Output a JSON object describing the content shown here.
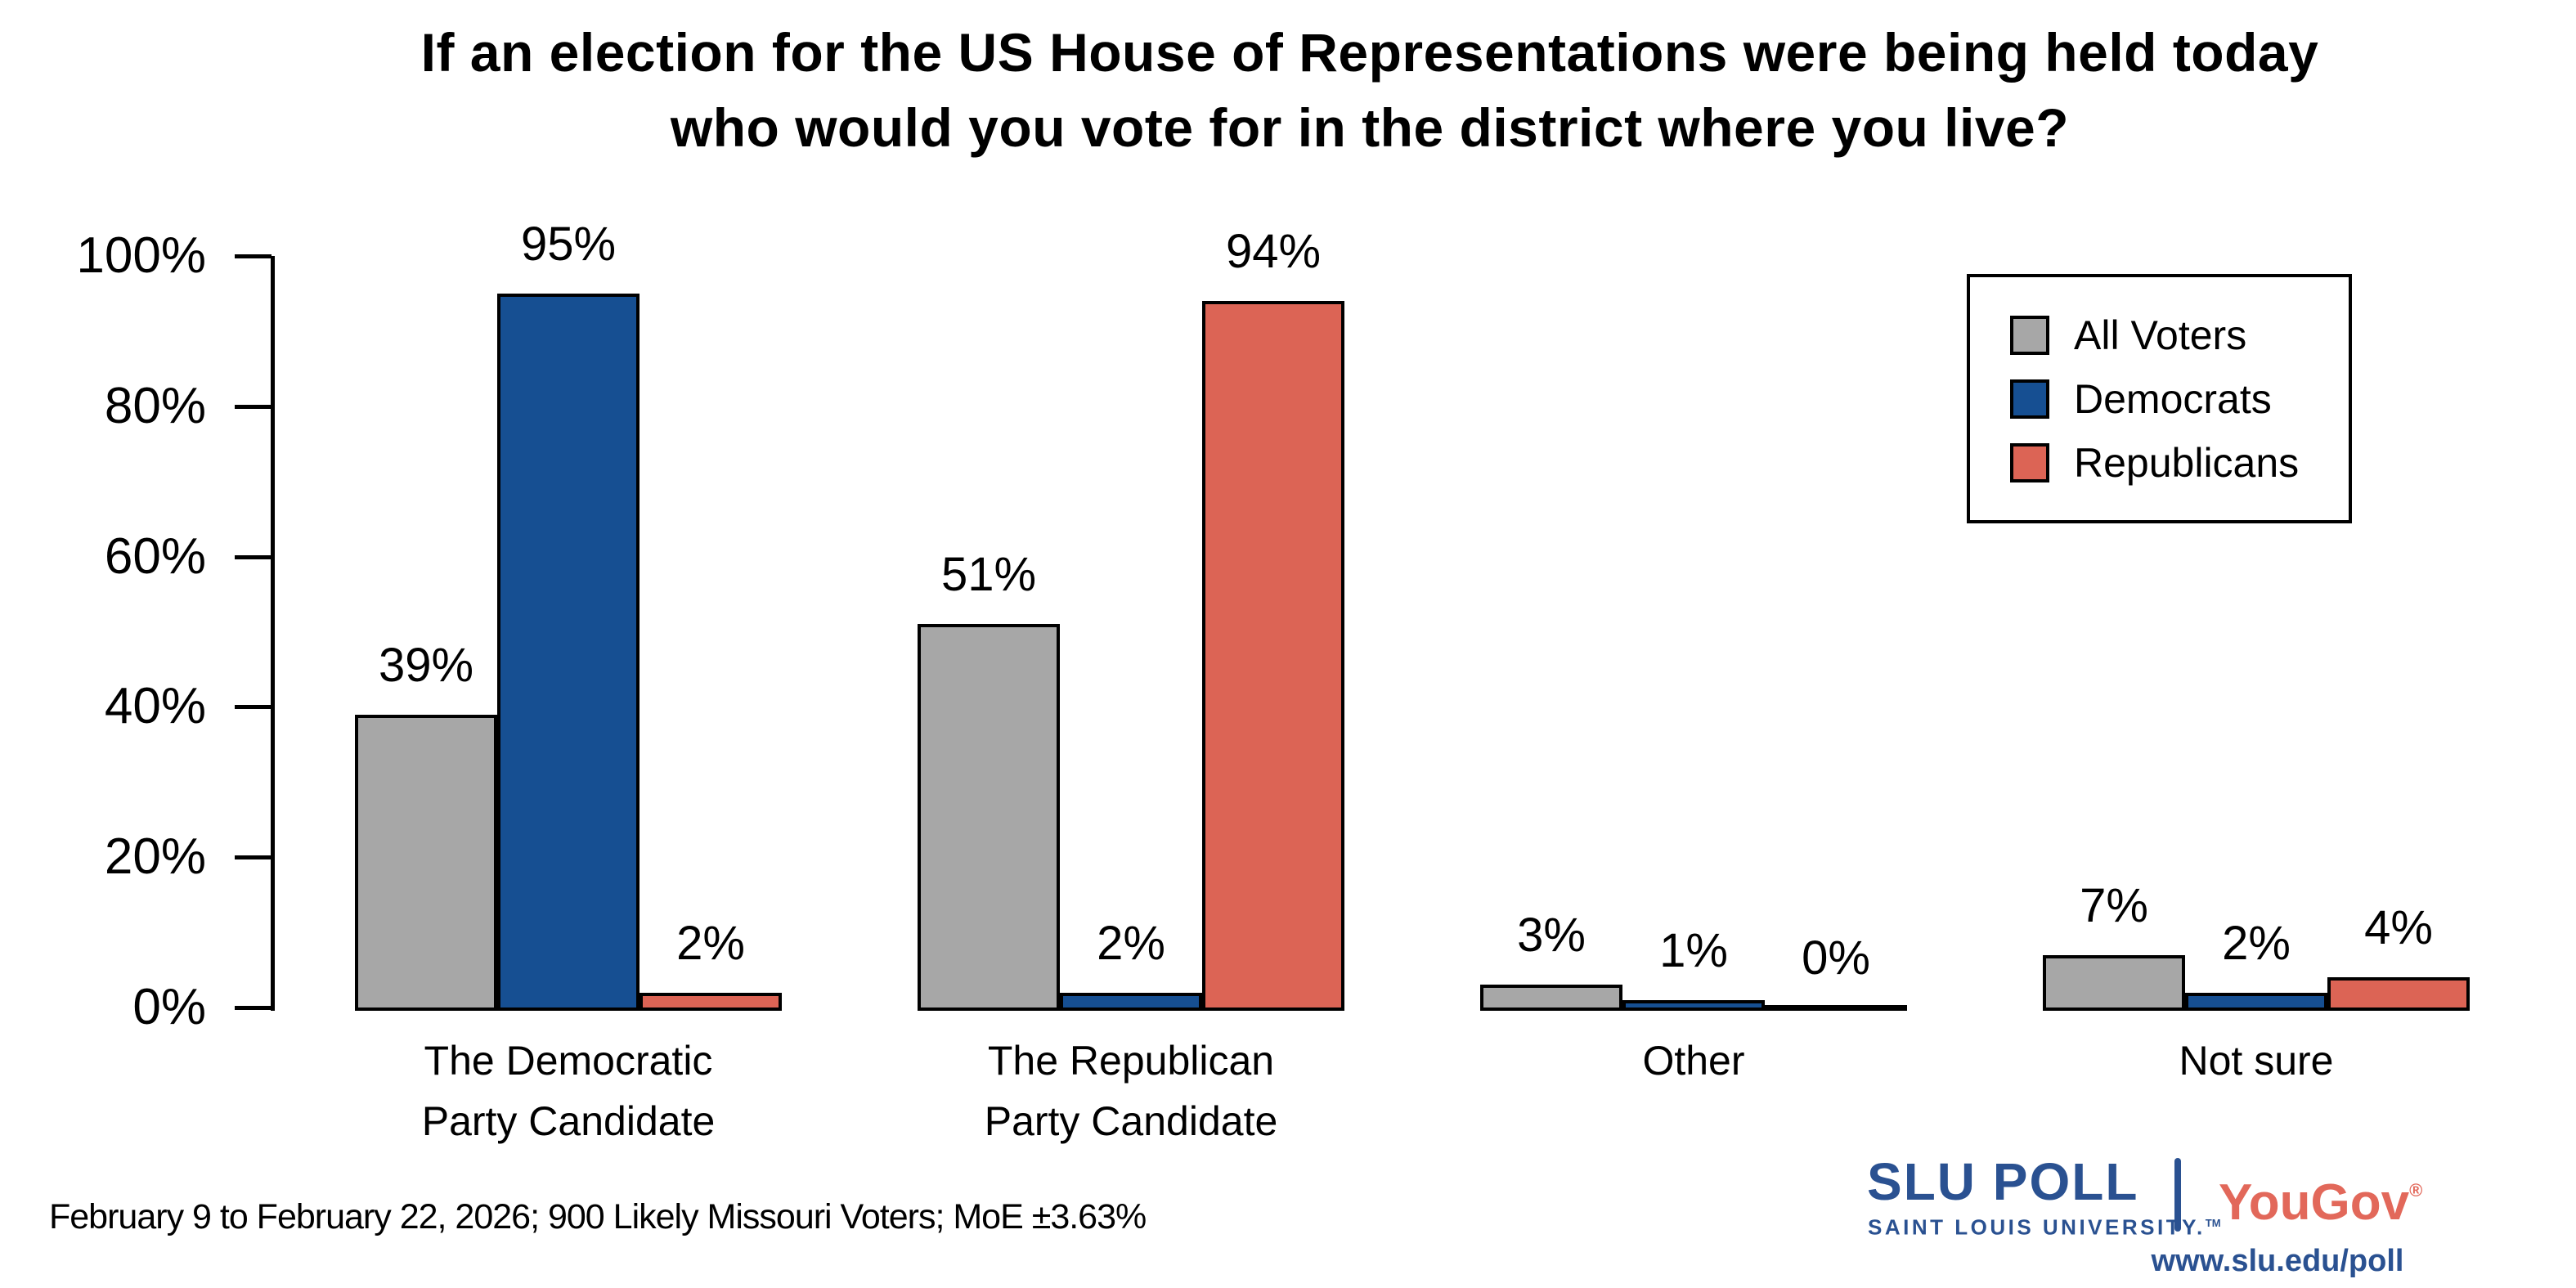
{
  "title": {
    "line1": "If an election for the US House of Representations were being held today",
    "line2": "who would you vote for in the district where you live?"
  },
  "chart_data": {
    "type": "bar",
    "categories": [
      [
        "The Democratic",
        "Party Candidate"
      ],
      [
        "The Republican",
        "Party Candidate"
      ],
      [
        "Other"
      ],
      [
        "Not sure"
      ]
    ],
    "series": [
      {
        "name": "All Voters",
        "color": "#a7a7a7",
        "values": [
          39,
          51,
          3,
          7
        ]
      },
      {
        "name": "Democrats",
        "color": "#164f92",
        "values": [
          95,
          2,
          1,
          2
        ]
      },
      {
        "name": "Republicans",
        "color": "#dc6455",
        "values": [
          2,
          94,
          0,
          4
        ]
      }
    ],
    "value_suffix": "%",
    "yticks": [
      "100%",
      "80%",
      "60%",
      "40%",
      "20%",
      "0%"
    ],
    "ylim": [
      0,
      100
    ],
    "xlabel": "",
    "ylabel": "",
    "grid": false,
    "legend_position": "top-right"
  },
  "footer": {
    "note": "February 9 to February 22, 2026; 900 Likely Missouri Voters; MoE ±3.63%"
  },
  "branding": {
    "slu": "SLU",
    "poll": "POLL",
    "slu_sub": "SAINT LOUIS UNIVERSITY.",
    "slu_sub_tm": "TM",
    "yougov": "YouGov",
    "yougov_reg": "®",
    "url": "www.slu.edu/poll"
  }
}
